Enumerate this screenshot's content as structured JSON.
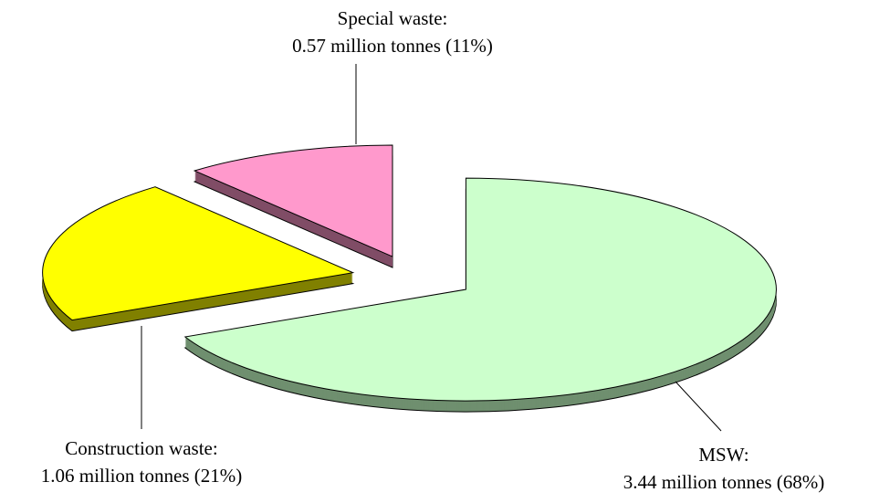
{
  "chart_data": {
    "type": "pie",
    "categories": [
      "MSW:",
      "Construction waste:",
      "Special waste:"
    ],
    "values": [
      68,
      21,
      11
    ],
    "value_labels": [
      "3.44 million tonnes (68%)",
      "1.06 million tonnes (21%)",
      "0.57 million tonnes (11%)"
    ],
    "colors": [
      "#ccffcc",
      "#ffff00",
      "#ff99cc"
    ],
    "side_colors": [
      "#6f8f6f",
      "#808000",
      "#804d66"
    ]
  }
}
